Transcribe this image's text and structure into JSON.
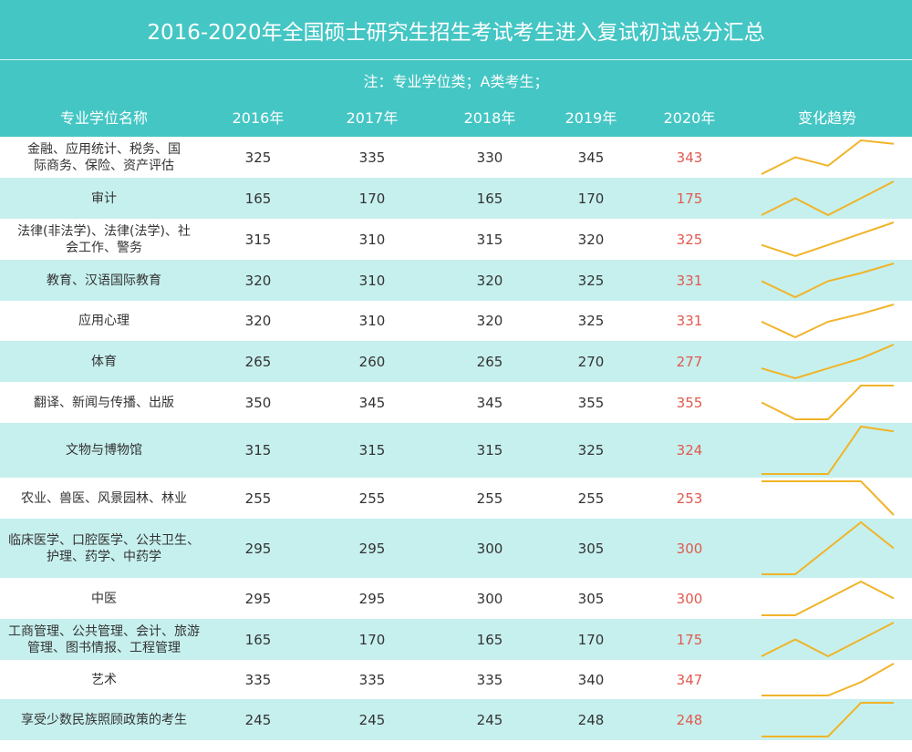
{
  "title": "2016-2020年全国硕士研究生招生考试考生进入复试初试总分汇总",
  "note": "注：专业学位类；A类考生；",
  "columns": [
    "专业学位名称",
    "2016年",
    "2017年",
    "2018年",
    "2019年",
    "2020年",
    "变化趋势"
  ],
  "colors": {
    "header": "#44c6c4",
    "band": "#c6f0ee",
    "trend": "#f0b429",
    "highlight": "#e05a4e"
  },
  "chart_data": {
    "type": "table",
    "title": "2016-2020年全国硕士研究生招生考试考生进入复试初试总分汇总",
    "years": [
      "2016年",
      "2017年",
      "2018年",
      "2019年",
      "2020年"
    ],
    "rows": [
      {
        "name": "金融、应用统计、税务、国际商务、保险、资产评估",
        "values": [
          325,
          335,
          330,
          345,
          343
        ]
      },
      {
        "name": "审计",
        "values": [
          165,
          170,
          165,
          170,
          175
        ]
      },
      {
        "name": "法律(非法学)、法律(法学)、社会工作、警务",
        "values": [
          315,
          310,
          315,
          320,
          325
        ]
      },
      {
        "name": "教育、汉语国际教育",
        "values": [
          320,
          310,
          320,
          325,
          331
        ]
      },
      {
        "name": "应用心理",
        "values": [
          320,
          310,
          320,
          325,
          331
        ]
      },
      {
        "name": "体育",
        "values": [
          265,
          260,
          265,
          270,
          277
        ]
      },
      {
        "name": "翻译、新闻与传播、出版",
        "values": [
          350,
          345,
          345,
          355,
          355
        ]
      },
      {
        "name": "文物与博物馆",
        "values": [
          315,
          315,
          315,
          325,
          324
        ]
      },
      {
        "name": "农业、兽医、风景园林、林业",
        "values": [
          255,
          255,
          255,
          255,
          253
        ]
      },
      {
        "name": "临床医学、口腔医学、公共卫生、护理、药学、中药学",
        "values": [
          295,
          295,
          300,
          305,
          300
        ]
      },
      {
        "name": "中医",
        "values": [
          295,
          295,
          300,
          305,
          300
        ]
      },
      {
        "name": "工商管理、公共管理、会计、旅游管理、图书情报、工程管理",
        "values": [
          165,
          170,
          165,
          170,
          175
        ]
      },
      {
        "name": "艺术",
        "values": [
          335,
          335,
          335,
          340,
          347
        ]
      },
      {
        "name": "享受少数民族照顾政策的考生",
        "values": [
          245,
          245,
          245,
          248,
          248
        ]
      }
    ]
  }
}
